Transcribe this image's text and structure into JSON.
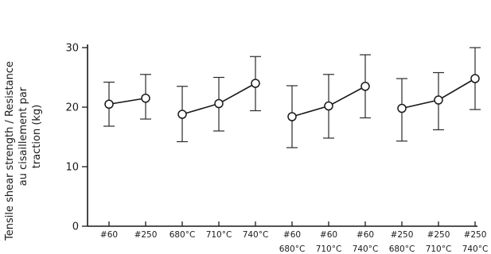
{
  "chart_data": {
    "type": "line",
    "ylabel_lines": [
      "Tensile shear strength / Resistance",
      "au cisaillement par",
      "traction (kg)"
    ],
    "ylim": [
      0,
      30
    ],
    "yticks": [
      0,
      10,
      20,
      30
    ],
    "grid": false,
    "x_positions": [
      1,
      2,
      3,
      4,
      5,
      6,
      7,
      8,
      9,
      10,
      11
    ],
    "x_tick_labels_row1": [
      "#60",
      "#250",
      "680°C",
      "710°C",
      "740°C",
      "#60",
      "#60",
      "#60",
      "#250",
      "#250",
      "#250"
    ],
    "x_tick_labels_row2": [
      "",
      "",
      "",
      "",
      "",
      "680°C",
      "710°C",
      "740°C",
      "680°C",
      "710°C",
      "740°C"
    ],
    "groups": [
      {
        "x": [
          1,
          2
        ],
        "values": [
          20.5,
          21.5
        ],
        "err_low": [
          16.8,
          18.0
        ],
        "err_high": [
          24.2,
          25.5
        ]
      },
      {
        "x": [
          3,
          4,
          5
        ],
        "values": [
          18.8,
          20.6,
          24.0
        ],
        "err_low": [
          14.2,
          16.0,
          19.4
        ],
        "err_high": [
          23.5,
          25.0,
          28.5
        ]
      },
      {
        "x": [
          6,
          7,
          8
        ],
        "values": [
          18.4,
          20.2,
          23.5
        ],
        "err_low": [
          13.2,
          14.8,
          18.2
        ],
        "err_high": [
          23.6,
          25.5,
          28.8
        ]
      },
      {
        "x": [
          9,
          10,
          11
        ],
        "values": [
          19.8,
          21.2,
          24.8
        ],
        "err_low": [
          14.3,
          16.2,
          19.6
        ],
        "err_high": [
          24.8,
          25.8,
          30.0
        ]
      }
    ]
  }
}
